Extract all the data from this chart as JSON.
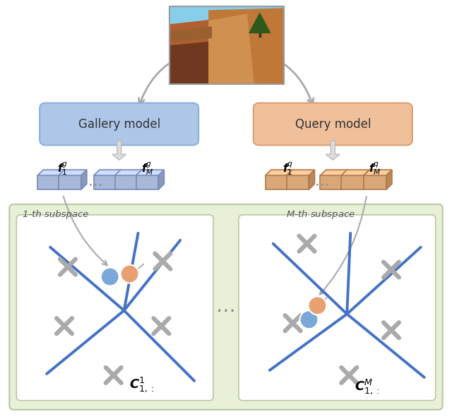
{
  "fig_width": 6.4,
  "fig_height": 5.9,
  "bg_color": "#ffffff",
  "gallery_box_color": "#aec6e8",
  "gallery_box_edge": "#8ab0d8",
  "query_box_color": "#f0c09a",
  "query_box_edge": "#d8a070",
  "gallery_label": "Gallery model",
  "query_label": "Query model",
  "subspace_bg": "#e8f0d8",
  "subspace_edge": "#b8c8a0",
  "blue_line_color": "#4472c4",
  "cross_color": "#aaaaaa",
  "blue_dot_color": "#7aa8d8",
  "orange_dot_color": "#e8a070",
  "arrow_color": "#aaaaaa",
  "feature_blue": "#a8b8d8",
  "feature_orange": "#d8a878",
  "sub1_label": "1-th subspace",
  "sub2_label": "M-th subspace"
}
